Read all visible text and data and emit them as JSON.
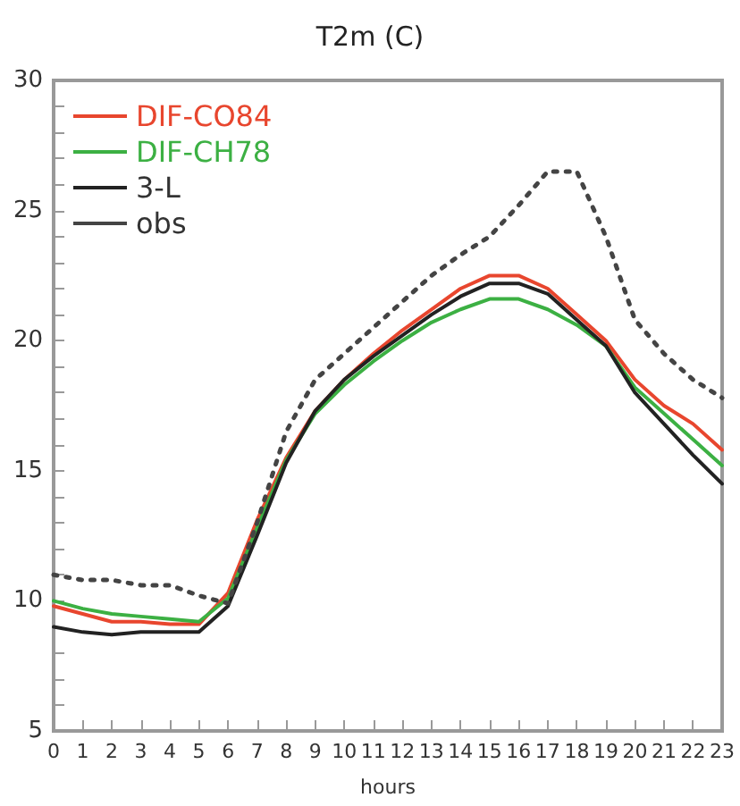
{
  "chart_data": {
    "type": "line",
    "title": "T2m (C)",
    "xlabel": "hours",
    "x": [
      0,
      1,
      2,
      3,
      4,
      5,
      6,
      7,
      8,
      9,
      10,
      11,
      12,
      13,
      14,
      15,
      16,
      17,
      18,
      19,
      20,
      21,
      22,
      23
    ],
    "series": [
      {
        "name": "DIF-CO84",
        "color": "#e8462e",
        "line_style": "solid",
        "values": [
          9.8,
          9.5,
          9.2,
          9.2,
          9.1,
          9.1,
          10.3,
          13.1,
          15.5,
          17.3,
          18.5,
          19.5,
          20.4,
          21.2,
          22,
          22.5,
          22.5,
          22,
          21,
          20,
          18.5,
          17.5,
          16.8,
          15.8
        ]
      },
      {
        "name": "DIF-CH78",
        "color": "#3cb043",
        "line_style": "solid",
        "values": [
          10,
          9.7,
          9.5,
          9.4,
          9.3,
          9.2,
          10.1,
          12.8,
          15.4,
          17.2,
          18.3,
          19.2,
          20,
          20.7,
          21.2,
          21.6,
          21.6,
          21.2,
          20.6,
          19.8,
          18.2,
          17.2,
          16.2,
          15.2
        ]
      },
      {
        "name": "3-L",
        "color": "#222222",
        "line_style": "solid",
        "values": [
          9,
          8.8,
          8.7,
          8.8,
          8.8,
          8.8,
          9.8,
          12.5,
          15.3,
          17.3,
          18.5,
          19.4,
          20.2,
          21,
          21.7,
          22.2,
          22.2,
          21.8,
          20.8,
          19.8,
          18,
          16.8,
          15.6,
          14.5
        ]
      },
      {
        "name": "obs",
        "color": "#444444",
        "line_style": "dotted",
        "values": [
          11,
          10.8,
          10.8,
          10.6,
          10.6,
          10.2,
          9.9,
          13,
          16.5,
          18.5,
          19.5,
          20.5,
          21.5,
          22.5,
          23.3,
          24,
          25.2,
          26.5,
          26.5,
          24,
          20.8,
          19.5,
          18.5,
          17.8
        ]
      }
    ],
    "xlim": [
      0,
      23
    ],
    "xticks": [
      0,
      1,
      2,
      3,
      4,
      5,
      6,
      7,
      8,
      9,
      10,
      11,
      12,
      13,
      14,
      15,
      16,
      17,
      18,
      19,
      20,
      21,
      22,
      23
    ],
    "ylim": [
      5,
      30
    ],
    "yticks": [
      5,
      {
        "value": 6,
        "label": null
      },
      {
        "value": 7,
        "label": null
      },
      {
        "value": 8,
        "label": null
      },
      {
        "value": 9,
        "label": null
      },
      10,
      {
        "value": 11,
        "label": null
      },
      {
        "value": 12,
        "label": null
      },
      {
        "value": 13,
        "label": null
      },
      {
        "value": 14,
        "label": null
      },
      15,
      {
        "value": 16,
        "label": null
      },
      {
        "value": 17,
        "label": null
      },
      {
        "value": 18,
        "label": null
      },
      {
        "value": 19,
        "label": null
      },
      20,
      {
        "value": 21,
        "label": null
      },
      {
        "value": 22,
        "label": null
      },
      {
        "value": 23,
        "label": null
      },
      {
        "value": 24,
        "label": null
      },
      25,
      {
        "value": 26,
        "label": null
      },
      {
        "value": 27,
        "label": null
      },
      {
        "value": 28,
        "label": null
      },
      {
        "value": 29,
        "label": null
      },
      30
    ],
    "grid": false,
    "legend": "top left",
    "marker": "none"
  }
}
